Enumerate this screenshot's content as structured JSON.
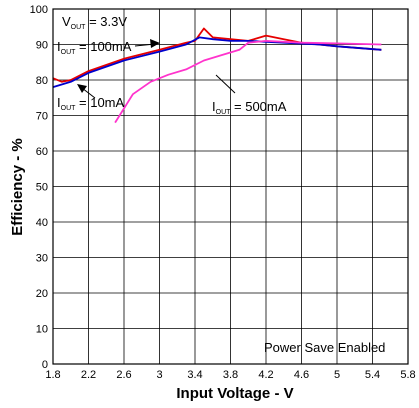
{
  "chart_data": {
    "type": "line",
    "title": "",
    "xlabel": "Input Voltage - V",
    "ylabel": "Efficiency - %",
    "xlim": [
      1.8,
      5.8
    ],
    "ylim": [
      0,
      100
    ],
    "x_ticks": [
      "1.8",
      "2.2",
      "2.6",
      "3",
      "3.4",
      "3.8",
      "4.2",
      "4.6",
      "5",
      "5.4",
      "5.8"
    ],
    "y_ticks": [
      "0",
      "10",
      "20",
      "30",
      "40",
      "50",
      "60",
      "70",
      "80",
      "90",
      "100"
    ],
    "grid": true,
    "note": "Power Save Enabled",
    "annotations": {
      "vout": {
        "main": "V",
        "sub": "OUT",
        "rest": " = 3.3V"
      },
      "iout100": {
        "main": "I",
        "sub": "OUT",
        "rest": " = 100mA"
      },
      "iout10": {
        "main": "I",
        "sub": "OUT",
        "rest": " = 10mA"
      },
      "iout500": {
        "main": "I",
        "sub": "OUT",
        "rest": " = 500mA"
      }
    },
    "series": [
      {
        "color": "#e60000",
        "x": [
          1.8,
          1.9,
          2.0,
          2.2,
          2.6,
          3.0,
          3.3,
          3.4,
          3.5,
          3.6,
          3.8,
          4.0,
          4.2,
          4.4,
          4.6,
          5.0,
          5.5
        ],
        "y": [
          80.5,
          79.5,
          80.0,
          82.5,
          86.0,
          88.5,
          90.5,
          91.0,
          94.5,
          92.0,
          91.5,
          91.0,
          92.5,
          91.5,
          90.5,
          89.5,
          88.5
        ]
      },
      {
        "color": "#0000cc",
        "x": [
          1.8,
          2.0,
          2.2,
          2.6,
          3.0,
          3.3,
          3.45,
          3.6,
          3.8,
          4.0,
          4.4,
          4.8,
          5.0,
          5.5
        ],
        "y": [
          78.0,
          79.5,
          82.0,
          85.5,
          88.0,
          90.0,
          92.0,
          91.5,
          91.0,
          91.0,
          90.5,
          90.0,
          89.5,
          88.5
        ]
      },
      {
        "color": "#ff33cc",
        "x": [
          2.5,
          2.7,
          2.9,
          3.1,
          3.3,
          3.5,
          3.7,
          3.9,
          4.0,
          4.2,
          4.6,
          5.0,
          5.5
        ],
        "y": [
          68.0,
          76.0,
          79.5,
          81.5,
          83.0,
          85.5,
          87.0,
          88.5,
          90.5,
          91.0,
          90.5,
          90.3,
          90.0
        ]
      }
    ]
  }
}
